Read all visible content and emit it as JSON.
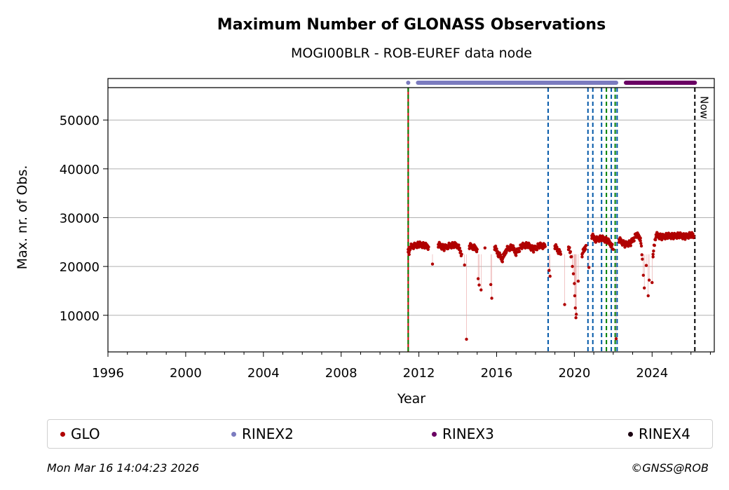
{
  "chart_data": {
    "type": "scatter",
    "title": "Maximum Number of GLONASS Observations",
    "subtitle": "MOGI00BLR - ROB-EUREF data node",
    "xlabel": "Year",
    "ylabel": "Max. nr. of Obs.",
    "xlim": [
      1996,
      2027.2
    ],
    "ylim": [
      2500,
      58500
    ],
    "x_ticks": [
      1996,
      2000,
      2004,
      2008,
      2012,
      2016,
      2020,
      2024
    ],
    "x_tick_labels": [
      "1996",
      "2000",
      "2004",
      "2008",
      "2012",
      "2016",
      "2020",
      "2024"
    ],
    "y_ticks": [
      10000,
      20000,
      30000,
      40000,
      50000
    ],
    "y_tick_labels": [
      "10000",
      "20000",
      "30000",
      "40000",
      "50000"
    ],
    "grid": "horizontal",
    "legend_position": "bottom",
    "series": [
      {
        "name": "GLO",
        "color": "#b00000",
        "points": [
          [
            2011.45,
            23500
          ],
          [
            2011.5,
            23000
          ],
          [
            2011.55,
            24000
          ],
          [
            2012.0,
            24500
          ],
          [
            2012.3,
            24300
          ],
          [
            2012.5,
            24000
          ],
          [
            2012.7,
            20500
          ],
          [
            2013.0,
            24500
          ],
          [
            2013.3,
            23800
          ],
          [
            2013.5,
            24200
          ],
          [
            2013.8,
            24400
          ],
          [
            2014.0,
            24300
          ],
          [
            2014.2,
            22500
          ],
          [
            2014.35,
            20300
          ],
          [
            2014.45,
            5100
          ],
          [
            2014.6,
            24200
          ],
          [
            2014.8,
            24000
          ],
          [
            2015.0,
            23500
          ],
          [
            2015.05,
            17500
          ],
          [
            2015.1,
            16200
          ],
          [
            2015.2,
            15200
          ],
          [
            2015.4,
            23800
          ],
          [
            2015.7,
            16300
          ],
          [
            2015.75,
            13500
          ],
          [
            2015.9,
            24000
          ],
          [
            2016.1,
            22500
          ],
          [
            2016.3,
            21500
          ],
          [
            2016.5,
            23500
          ],
          [
            2016.8,
            24000
          ],
          [
            2017.0,
            22800
          ],
          [
            2017.3,
            24200
          ],
          [
            2017.6,
            24400
          ],
          [
            2017.9,
            23500
          ],
          [
            2018.2,
            24300
          ],
          [
            2018.5,
            24100
          ],
          [
            2018.7,
            19200
          ],
          [
            2018.75,
            18000
          ],
          [
            2019.0,
            24200
          ],
          [
            2019.3,
            22500
          ],
          [
            2019.5,
            12200
          ],
          [
            2019.7,
            24000
          ],
          [
            2019.85,
            22000
          ],
          [
            2019.9,
            20000
          ],
          [
            2019.95,
            18500
          ],
          [
            2020.0,
            16500
          ],
          [
            2020.02,
            14000
          ],
          [
            2020.05,
            11500
          ],
          [
            2020.08,
            9500
          ],
          [
            2020.1,
            10200
          ],
          [
            2020.2,
            17000
          ],
          [
            2020.4,
            22500
          ],
          [
            2020.6,
            24300
          ],
          [
            2020.75,
            19800
          ],
          [
            2020.9,
            26300
          ],
          [
            2021.1,
            25500
          ],
          [
            2021.4,
            25800
          ],
          [
            2021.7,
            25300
          ],
          [
            2021.9,
            24500
          ],
          [
            2022.0,
            23500
          ],
          [
            2022.15,
            5200
          ],
          [
            2022.3,
            25500
          ],
          [
            2022.6,
            24500
          ],
          [
            2022.9,
            24800
          ],
          [
            2023.2,
            26500
          ],
          [
            2023.4,
            25800
          ],
          [
            2023.5,
            21500
          ],
          [
            2023.55,
            18200
          ],
          [
            2023.6,
            15600
          ],
          [
            2023.7,
            20200
          ],
          [
            2023.8,
            14000
          ],
          [
            2023.85,
            17200
          ],
          [
            2024.0,
            16700
          ],
          [
            2024.05,
            22500
          ],
          [
            2024.2,
            26500
          ],
          [
            2024.5,
            26000
          ],
          [
            2024.8,
            26300
          ],
          [
            2025.1,
            26200
          ],
          [
            2025.4,
            26400
          ],
          [
            2025.7,
            26100
          ],
          [
            2026.0,
            26500
          ],
          [
            2026.15,
            26200
          ]
        ]
      },
      {
        "name": "RINEX2",
        "color": "#7b7bbf",
        "x_range": [
          2011.45,
          2022.15
        ]
      },
      {
        "name": "RINEX3",
        "color": "#6a0063",
        "x_range": [
          2022.15,
          2026.2
        ]
      },
      {
        "name": "RINEX4",
        "color": "#1a0010",
        "x_range": []
      }
    ],
    "vertical_lines": [
      {
        "x": 2011.45,
        "color": "#cc0000",
        "style": "solid"
      },
      {
        "x": 2011.45,
        "color": "#008000",
        "style": "dashed"
      },
      {
        "x": 2018.65,
        "color": "#0057a8",
        "style": "dashed"
      },
      {
        "x": 2020.7,
        "color": "#0057a8",
        "style": "dashed"
      },
      {
        "x": 2020.95,
        "color": "#0057a8",
        "style": "dashed"
      },
      {
        "x": 2021.4,
        "color": "#0057a8",
        "style": "dashed"
      },
      {
        "x": 2021.65,
        "color": "#008000",
        "style": "dashed"
      },
      {
        "x": 2021.9,
        "color": "#0057a8",
        "style": "dashed"
      },
      {
        "x": 2022.1,
        "color": "#008000",
        "style": "dashed"
      },
      {
        "x": 2022.2,
        "color": "#0057a8",
        "style": "dashed"
      },
      {
        "x": 2026.2,
        "color": "#000000",
        "style": "dashed",
        "label": "Now"
      }
    ]
  },
  "footer": {
    "timestamp": "Mon Mar 16 14:04:23 2026",
    "credit": "©GNSS@ROB"
  }
}
